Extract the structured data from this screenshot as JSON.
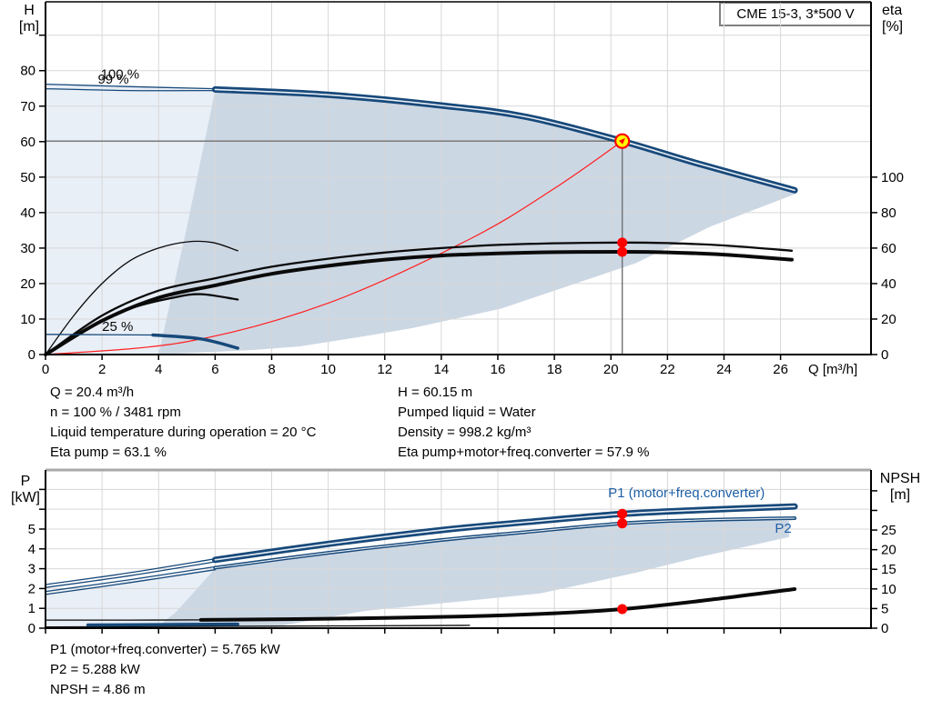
{
  "header": {
    "pump_type": "CME 15-3, 3*500 V"
  },
  "colors": {
    "navy": "#17497a",
    "stripe": "#e8eef5",
    "black": "#0a0a0a",
    "red": "#ff2020",
    "dot_red": "#ff0000",
    "yellow": "#ffff00",
    "light_fill": "#e9eff7",
    "dark_fill": "#ccd7e4",
    "grid": "#d7d7d7",
    "crosshair": "#707070",
    "label_blue": "#1e5fa6",
    "axis": "#000000",
    "border_gray": "#a8a8a8",
    "box_border": "#808080"
  },
  "axis_titles": {
    "h": [
      "H",
      "[m]"
    ],
    "eta": [
      "eta",
      "[%]"
    ],
    "p": [
      "P",
      "[kW]"
    ],
    "npsh": [
      "NPSH",
      "[m]"
    ]
  },
  "info_top": {
    "left": [
      "Q = 20.4 m³/h",
      "n = 100 % / 3481 rpm",
      "Liquid temperature during operation = 20 °C",
      "Eta pump = 63.1 %"
    ],
    "right": [
      "H = 60.15 m",
      "Pumped liquid = Water",
      "Density = 998.2 kg/m³",
      "Eta pump+motor+freq.converter = 57.9 %"
    ]
  },
  "info_bottom": [
    "P1 (motor+freq.converter) = 5.765 kW",
    "P2 = 5.288 kW",
    "NPSH = 4.86 m"
  ],
  "chart_data": [
    {
      "id": "hq",
      "type": "line",
      "title": "CME 15-3, 3*500 V",
      "x_axis": {
        "label": "Q [m³/h]",
        "range": [
          0,
          29.2
        ],
        "ticks": [
          0,
          2,
          4,
          6,
          8,
          10,
          12,
          14,
          16,
          18,
          20,
          22,
          24,
          26
        ],
        "show_labels": true
      },
      "y_axis": {
        "label": "H [m]",
        "range": [
          0,
          99.4
        ],
        "ticks": [
          0,
          10,
          20,
          30,
          40,
          50,
          60,
          70,
          80
        ],
        "unlabeled_ticks": [
          90
        ]
      },
      "y2_axis": {
        "label": "eta [%]",
        "range": [
          0,
          198.8
        ],
        "ticks": [
          0,
          20,
          40,
          60,
          80,
          100
        ],
        "unlabeled_ticks": []
      },
      "regions": [
        {
          "name": "envelope-light",
          "axis": "y",
          "fill": "light_fill",
          "points": [
            [
              0,
              76.2
            ],
            [
              3,
              75.3
            ],
            [
              6,
              74.5
            ],
            [
              5.0,
              36
            ],
            [
              4.0,
              0
            ],
            [
              0,
              0
            ]
          ]
        },
        {
          "name": "envelope-dark",
          "axis": "y",
          "fill": "dark_fill",
          "points": [
            [
              6,
              74.5
            ],
            [
              10,
              73.2
            ],
            [
              14,
              70.2
            ],
            [
              17,
              67
            ],
            [
              20.4,
              60.15
            ],
            [
              23,
              54
            ],
            [
              26.5,
              46.3
            ],
            [
              26.5,
              45.2
            ],
            [
              23.5,
              36
            ],
            [
              20.9,
              25.8
            ],
            [
              18,
              18
            ],
            [
              16.1,
              12.9
            ],
            [
              13,
              7.5
            ],
            [
              11.3,
              5.2
            ],
            [
              9,
              2.3
            ],
            [
              7.4,
              1.3
            ],
            [
              4.0,
              0.02
            ],
            [
              5.0,
              36
            ]
          ]
        }
      ],
      "series": [
        {
          "name": "system-curve",
          "axis": "y",
          "style": "thin-red",
          "points": [
            [
              0,
              0
            ],
            [
              5,
              3.6
            ],
            [
              10,
              14.5
            ],
            [
              15,
              32.5
            ],
            [
              18,
              46.8
            ],
            [
              20.4,
              60.15
            ]
          ]
        },
        {
          "name": "eta-arc-reduced-speed",
          "axis": "y2",
          "style": "thin-black",
          "points": [
            [
              0,
              0
            ],
            [
              1,
              22
            ],
            [
              2,
              40
            ],
            [
              3,
              53
            ],
            [
              4,
              60
            ],
            [
              5,
              63.5
            ],
            [
              5.9,
              63.2
            ],
            [
              6.8,
              58.5
            ]
          ]
        },
        {
          "name": "eta-arc-reduced-total",
          "axis": "y2",
          "style": "med-black",
          "points": [
            [
              0,
              0
            ],
            [
              1.5,
              15
            ],
            [
              3,
              26
            ],
            [
              4.5,
              32
            ],
            [
              5.5,
              34
            ],
            [
              6.8,
              31
            ]
          ]
        },
        {
          "name": "eta-pump-curve",
          "axis": "y2",
          "style": "med-black",
          "points": [
            [
              0,
              0
            ],
            [
              2,
              22
            ],
            [
              4,
              36
            ],
            [
              6,
              43
            ],
            [
              8,
              49.5
            ],
            [
              10,
              54
            ],
            [
              12,
              57.5
            ],
            [
              14,
              60
            ],
            [
              16,
              61.8
            ],
            [
              18,
              62.7
            ],
            [
              20.4,
              63.1
            ],
            [
              22,
              62.8
            ],
            [
              24,
              61.5
            ],
            [
              26.4,
              58.5
            ]
          ]
        },
        {
          "name": "eta-total-curve",
          "axis": "y2",
          "style": "thick-black",
          "points": [
            [
              0,
              0
            ],
            [
              2,
              19
            ],
            [
              4,
              32
            ],
            [
              6,
              39
            ],
            [
              8,
              45.5
            ],
            [
              10,
              50
            ],
            [
              12,
              53.5
            ],
            [
              14,
              55.8
            ],
            [
              16,
              57
            ],
            [
              18,
              57.7
            ],
            [
              20.4,
              57.9
            ],
            [
              22,
              57.6
            ],
            [
              24,
              56.3
            ],
            [
              26.4,
              53.5
            ]
          ]
        },
        {
          "name": "hq-25pct-thin",
          "axis": "y",
          "style": "thin-navy",
          "points": [
            [
              0,
              5.7
            ],
            [
              3.8,
              5.5
            ]
          ]
        },
        {
          "name": "hq-25pct-curve",
          "axis": "y",
          "style": "med-navy",
          "points": [
            [
              3.8,
              5.5
            ],
            [
              5.5,
              4.4
            ],
            [
              6.8,
              1.8
            ]
          ]
        },
        {
          "name": "hq-100pct-thin",
          "axis": "y",
          "style": "thin-navy",
          "points": [
            [
              0,
              76.2
            ],
            [
              3,
              75.5
            ],
            [
              6,
              74.9
            ]
          ]
        },
        {
          "name": "hq-99pct-thin",
          "axis": "y",
          "style": "thin-navy",
          "points": [
            [
              0,
              74.9
            ],
            [
              3,
              74.4
            ],
            [
              6,
              74.4
            ]
          ]
        },
        {
          "name": "hq-main-curve",
          "axis": "y",
          "style": "thick-navy-double",
          "points": [
            [
              6,
              74.7
            ],
            [
              10,
              73.2
            ],
            [
              14,
              70.2
            ],
            [
              17,
              67
            ],
            [
              20.4,
              60.15
            ],
            [
              23,
              54
            ],
            [
              26.5,
              46.3
            ]
          ]
        }
      ],
      "crosshair": {
        "q": 20.4,
        "value": 60.15
      },
      "duty_point": {
        "q": 20.4,
        "h": 60.15
      },
      "dots": [
        {
          "q": 20.4,
          "axis": "y2",
          "value": 63.1
        },
        {
          "q": 20.4,
          "axis": "y2",
          "value": 57.9
        }
      ],
      "annotations": [
        {
          "name": "speed-100-label",
          "text": "100 %",
          "q": 1.95,
          "axis": "y",
          "value": 77.8,
          "color": "black"
        },
        {
          "name": "speed-99-label",
          "text": "99 %",
          "q": 1.85,
          "axis": "y",
          "value": 76.4,
          "color": "black"
        },
        {
          "name": "speed-25-label",
          "text": "25 %",
          "q": 2.0,
          "axis": "y",
          "value": 6.7,
          "color": "black"
        }
      ]
    },
    {
      "id": "power",
      "type": "line",
      "x_axis": {
        "label": "",
        "range": [
          0,
          29.2
        ],
        "ticks": [
          0,
          2,
          4,
          6,
          8,
          10,
          12,
          14,
          16,
          18,
          20,
          22,
          24,
          26
        ],
        "show_labels": false
      },
      "y_axis": {
        "label": "P [kW]",
        "range": [
          0,
          7.98
        ],
        "ticks": [
          0,
          1,
          2,
          3,
          4,
          5
        ],
        "unlabeled_ticks": [
          6,
          7
        ]
      },
      "y2_axis": {
        "label": "NPSH [m]",
        "range": [
          0,
          40.3
        ],
        "ticks": [
          0,
          5,
          10,
          15,
          20,
          25
        ],
        "unlabeled_ticks": [
          30,
          35
        ]
      },
      "regions": [
        {
          "name": "power-envelope-light",
          "axis": "y",
          "fill": "light_fill",
          "points": [
            [
              0,
              1.78
            ],
            [
              3,
              2.4
            ],
            [
              6,
              3.0
            ],
            [
              5.3,
              1.9
            ],
            [
              4.6,
              0.8
            ],
            [
              3.9,
              0.05
            ],
            [
              0,
              0
            ]
          ]
        },
        {
          "name": "power-envelope-dark",
          "axis": "y",
          "fill": "dark_fill",
          "points": [
            [
              6,
              3.02
            ],
            [
              10,
              3.78
            ],
            [
              14,
              4.43
            ],
            [
              17,
              4.83
            ],
            [
              20.4,
              5.26
            ],
            [
              24,
              5.48
            ],
            [
              26.3,
              5.42
            ],
            [
              26.3,
              4.6
            ],
            [
              23,
              3.55
            ],
            [
              20.9,
              2.8
            ],
            [
              17.5,
              1.75
            ],
            [
              14.9,
              1.38
            ],
            [
              11.3,
              0.87
            ],
            [
              8.4,
              0.14
            ],
            [
              3.9,
              0.02
            ],
            [
              4.6,
              0.8
            ],
            [
              5.3,
              1.9
            ]
          ]
        }
      ],
      "series": [
        {
          "name": "p-bottom-thin",
          "axis": "y",
          "style": "thin-black",
          "points": [
            [
              0,
              0.06
            ],
            [
              8,
              0.1
            ],
            [
              15,
              0.14
            ]
          ]
        },
        {
          "name": "npsh-thin",
          "axis": "y2",
          "style": "thin-black",
          "points": [
            [
              0,
              2.05
            ],
            [
              3,
              2.07
            ],
            [
              5.5,
              2.1
            ]
          ]
        },
        {
          "name": "npsh-main-curve",
          "axis": "y2",
          "style": "thick-black",
          "points": [
            [
              5.5,
              2.1
            ],
            [
              10,
              2.4
            ],
            [
              14.9,
              3.0
            ],
            [
              18,
              3.8
            ],
            [
              20.4,
              4.86
            ],
            [
              23,
              6.8
            ],
            [
              26.5,
              9.95
            ]
          ]
        },
        {
          "name": "p-25pct-curve",
          "axis": "y",
          "style": "med-navy",
          "points": [
            [
              1.5,
              0.16
            ],
            [
              6.8,
              0.2
            ]
          ]
        },
        {
          "name": "p1-thin-a",
          "axis": "y",
          "style": "thin-navy",
          "points": [
            [
              0,
              2.2
            ],
            [
              3,
              2.8
            ],
            [
              6,
              3.5
            ]
          ]
        },
        {
          "name": "p1-thin-b",
          "axis": "y",
          "style": "thin-navy",
          "points": [
            [
              0,
              2.05
            ],
            [
              3,
              2.65
            ],
            [
              6,
              3.35
            ]
          ]
        },
        {
          "name": "p2-thin-a",
          "axis": "y",
          "style": "thin-navy",
          "points": [
            [
              0,
              1.85
            ],
            [
              3,
              2.45
            ],
            [
              6,
              3.1
            ]
          ]
        },
        {
          "name": "p2-thin-b",
          "axis": "y",
          "style": "thin-navy",
          "points": [
            [
              0,
              1.7
            ],
            [
              3,
              2.3
            ],
            [
              6,
              2.95
            ]
          ]
        },
        {
          "name": "p2-main-curve",
          "axis": "y",
          "style": "med-navy-double",
          "points": [
            [
              6,
              3.05
            ],
            [
              10,
              3.8
            ],
            [
              14,
              4.45
            ],
            [
              17,
              4.85
            ],
            [
              20.4,
              5.288
            ],
            [
              23,
              5.45
            ],
            [
              26.5,
              5.55
            ]
          ]
        },
        {
          "name": "p1-main-curve",
          "axis": "y",
          "style": "thick-navy-double",
          "points": [
            [
              6,
              3.45
            ],
            [
              10,
              4.25
            ],
            [
              14,
              4.95
            ],
            [
              17,
              5.35
            ],
            [
              20.4,
              5.765
            ],
            [
              23,
              5.95
            ],
            [
              26.5,
              6.14
            ]
          ]
        }
      ],
      "dots": [
        {
          "q": 20.4,
          "axis": "y",
          "value": 5.765
        },
        {
          "q": 20.4,
          "axis": "y",
          "value": 5.288
        },
        {
          "q": 20.4,
          "axis": "y2",
          "value": 4.86
        }
      ],
      "annotations": [
        {
          "name": "p1-curve-label",
          "text": "P1 (motor+freq.converter)",
          "q": 19.9,
          "axis": "y",
          "value": 6.6,
          "color": "label_blue"
        },
        {
          "name": "p2-curve-label",
          "text": "P2",
          "q": 25.8,
          "axis": "y",
          "value": 4.82,
          "color": "label_blue"
        }
      ]
    }
  ]
}
